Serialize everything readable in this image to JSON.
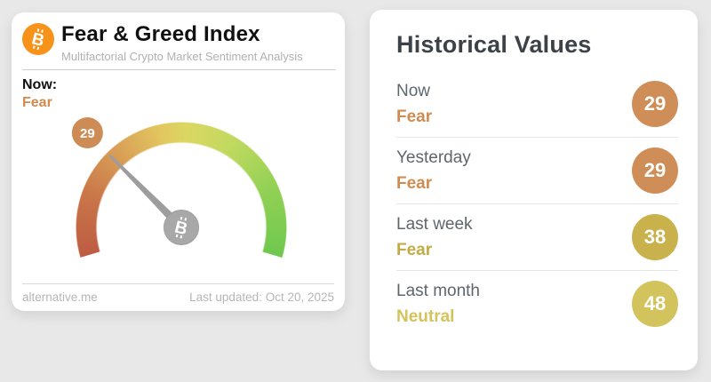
{
  "page": {
    "background": "#e9e8e8"
  },
  "gauge_card": {
    "title": "Fear & Greed Index",
    "subtitle": "Multifactorial Crypto Market Sentiment Analysis",
    "now_label": "Now:",
    "now_classification": "Fear",
    "source": "alternative.me",
    "last_updated": "Last updated: Oct 20, 2025",
    "brand_color": "#f7931a",
    "gauge": {
      "value": 29,
      "min": 0,
      "max": 100,
      "start_math_deg": 196.6,
      "sweep_deg": 213.2,
      "css_from_deg": -106.6,
      "needle_color": "#9d9d9d",
      "pivot_color": "#a8a8a8",
      "badge_color": "#cd8c55",
      "gradient_stops": [
        {
          "color": "#bd5c42",
          "angle": 0
        },
        {
          "color": "#c97549",
          "angle": 35
        },
        {
          "color": "#daa458",
          "angle": 70
        },
        {
          "color": "#e2c75f",
          "angle": 95
        },
        {
          "color": "#dbd763",
          "angle": 110
        },
        {
          "color": "#c0d95f",
          "angle": 138
        },
        {
          "color": "#93d155",
          "angle": 172
        },
        {
          "color": "#6fc84e",
          "angle": 213.2
        }
      ]
    }
  },
  "historical_card": {
    "title": "Historical Values",
    "rows": [
      {
        "label": "Now",
        "classification": "Fear",
        "value": 29,
        "text_color": "#cf8c50",
        "circle_color": "#cf8e58"
      },
      {
        "label": "Yesterday",
        "classification": "Fear",
        "value": 29,
        "text_color": "#cf8c50",
        "circle_color": "#cf8e58"
      },
      {
        "label": "Last week",
        "classification": "Fear",
        "value": 38,
        "text_color": "#c3ab45",
        "circle_color": "#c9b14c"
      },
      {
        "label": "Last month",
        "classification": "Neutral",
        "value": 48,
        "text_color": "#d3c35a",
        "circle_color": "#d3c35c"
      }
    ]
  }
}
